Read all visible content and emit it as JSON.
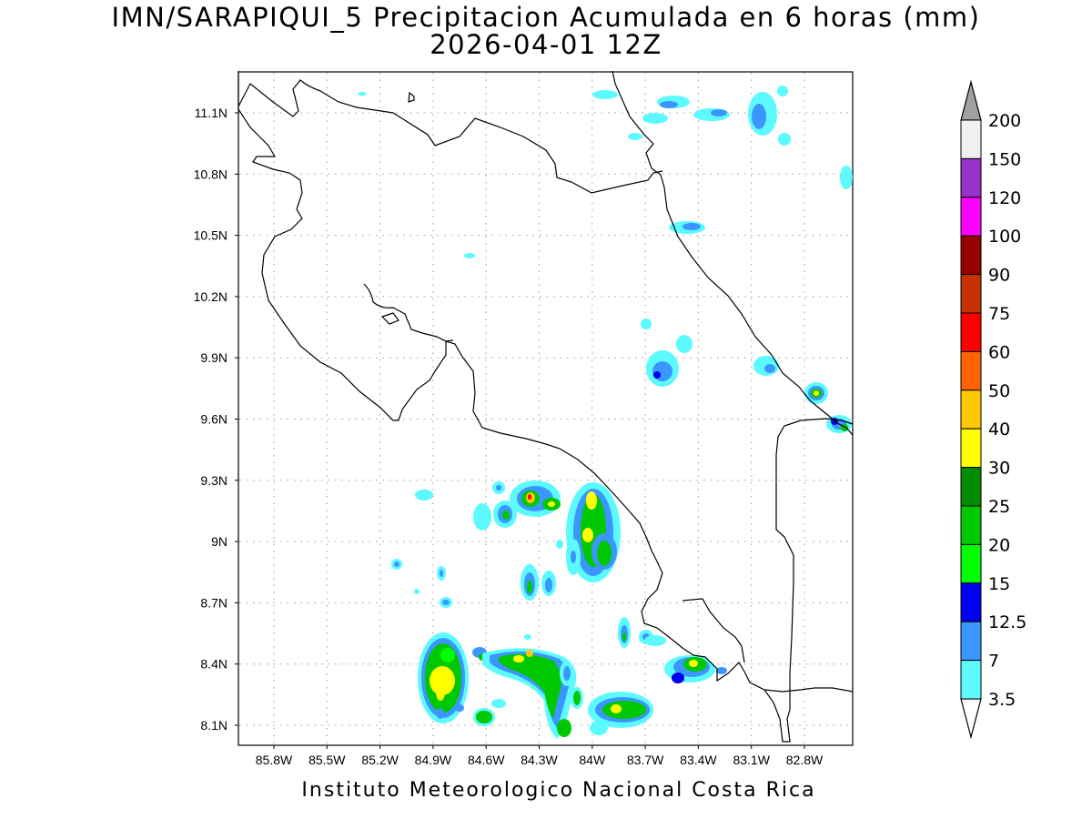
{
  "title": {
    "line1": "IMN/SARAPIQUI_5 Precipitacion Acumulada en 6 horas (mm)",
    "line2": "2026-04-01 12Z"
  },
  "footer": "Instituto Meteorologico Nacional Costa Rica",
  "map": {
    "lon_labels": [
      "85.8W",
      "85.5W",
      "85.2W",
      "84.9W",
      "84.6W",
      "84.3W",
      "84W",
      "83.7W",
      "83.4W",
      "83.1W",
      "82.8W"
    ],
    "lat_labels": [
      "11.1N",
      "10.8N",
      "10.5N",
      "10.2N",
      "9.9N",
      "9.6N",
      "9.3N",
      "9N",
      "8.7N",
      "8.4N",
      "8.1N"
    ],
    "grid": "dotted"
  },
  "colorbar": {
    "levels": [
      "3.5",
      "7",
      "12.5",
      "15",
      "20",
      "25",
      "30",
      "40",
      "50",
      "60",
      "75",
      "90",
      "100",
      "120",
      "150",
      "200"
    ],
    "colors": [
      "#5cfaff",
      "#3c96ff",
      "#0000f0",
      "#00ff00",
      "#00c800",
      "#008c00",
      "#ffff00",
      "#ffc800",
      "#ff6400",
      "#ff0000",
      "#c83200",
      "#960000",
      "#ff00ff",
      "#9632c8",
      "#f0f0f0",
      "#a0a0a0"
    ]
  }
}
